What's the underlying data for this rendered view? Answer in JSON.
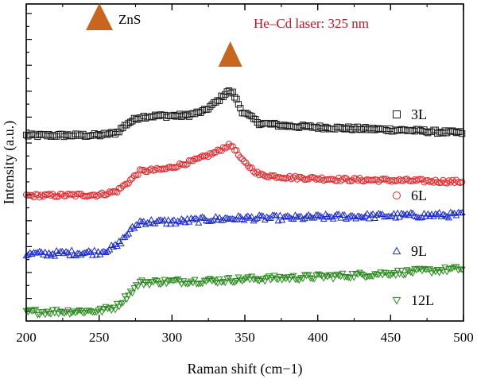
{
  "chart_data": {
    "type": "scatter",
    "title": "",
    "xlabel": "Raman shift (cm−1)",
    "ylabel": "Intensity (a.u.)",
    "xlim": [
      200,
      500
    ],
    "x_ticks": [
      "200",
      "250",
      "300",
      "350",
      "400",
      "450",
      "500"
    ],
    "ylim": [
      0,
      100
    ],
    "y_ticks_labeled": false,
    "legend_position": "right",
    "annotations": {
      "zns_label": "ZnS",
      "laser_label": "He–Cd laser: 325 nm",
      "laser_color": "#c0141c",
      "marker_color": "#c8651e",
      "zns_peak_x": 340
    },
    "series": [
      {
        "name": "3L",
        "marker": "square",
        "color": "#1a1a1a",
        "points": [
          [
            200,
            58.5
          ],
          [
            250,
            58.6
          ],
          [
            262,
            59.4
          ],
          [
            270,
            62.5
          ],
          [
            278,
            64.4
          ],
          [
            290,
            64.7
          ],
          [
            310,
            64.8
          ],
          [
            322,
            66.2
          ],
          [
            332,
            69.6
          ],
          [
            338,
            72.5
          ],
          [
            342,
            71.8
          ],
          [
            348,
            66.2
          ],
          [
            360,
            62.4
          ],
          [
            380,
            61.5
          ],
          [
            420,
            60.8
          ],
          [
            460,
            60.2
          ],
          [
            500,
            59.3
          ]
        ]
      },
      {
        "name": "6L",
        "marker": "circle",
        "color": "#e8262a",
        "points": [
          [
            200,
            39.5
          ],
          [
            250,
            39.8
          ],
          [
            262,
            40.9
          ],
          [
            270,
            43.8
          ],
          [
            278,
            47.2
          ],
          [
            295,
            47.9
          ],
          [
            315,
            50.5
          ],
          [
            330,
            53.2
          ],
          [
            338,
            55.3
          ],
          [
            342,
            55.1
          ],
          [
            348,
            50.6
          ],
          [
            360,
            46.1
          ],
          [
            380,
            45.3
          ],
          [
            420,
            44.6
          ],
          [
            460,
            44.3
          ],
          [
            500,
            43.9
          ]
        ]
      },
      {
        "name": "9L",
        "marker": "triangle-up",
        "color": "#1c2bd6",
        "points": [
          [
            200,
            21.1
          ],
          [
            250,
            21.7
          ],
          [
            262,
            23.6
          ],
          [
            270,
            27.8
          ],
          [
            278,
            31.3
          ],
          [
            300,
            31.3
          ],
          [
            330,
            32.2
          ],
          [
            350,
            32.5
          ],
          [
            380,
            32.5
          ],
          [
            420,
            33.0
          ],
          [
            460,
            33.3
          ],
          [
            500,
            33.5
          ]
        ]
      },
      {
        "name": "12L",
        "marker": "triangle-down",
        "color": "#2a8a1e",
        "points": [
          [
            200,
            2.8
          ],
          [
            250,
            3.2
          ],
          [
            262,
            4.5
          ],
          [
            270,
            8.3
          ],
          [
            278,
            12.1
          ],
          [
            300,
            12.5
          ],
          [
            330,
            12.7
          ],
          [
            350,
            13.2
          ],
          [
            380,
            13.6
          ],
          [
            420,
            14.3
          ],
          [
            460,
            15.4
          ],
          [
            500,
            16.5
          ]
        ]
      }
    ]
  }
}
